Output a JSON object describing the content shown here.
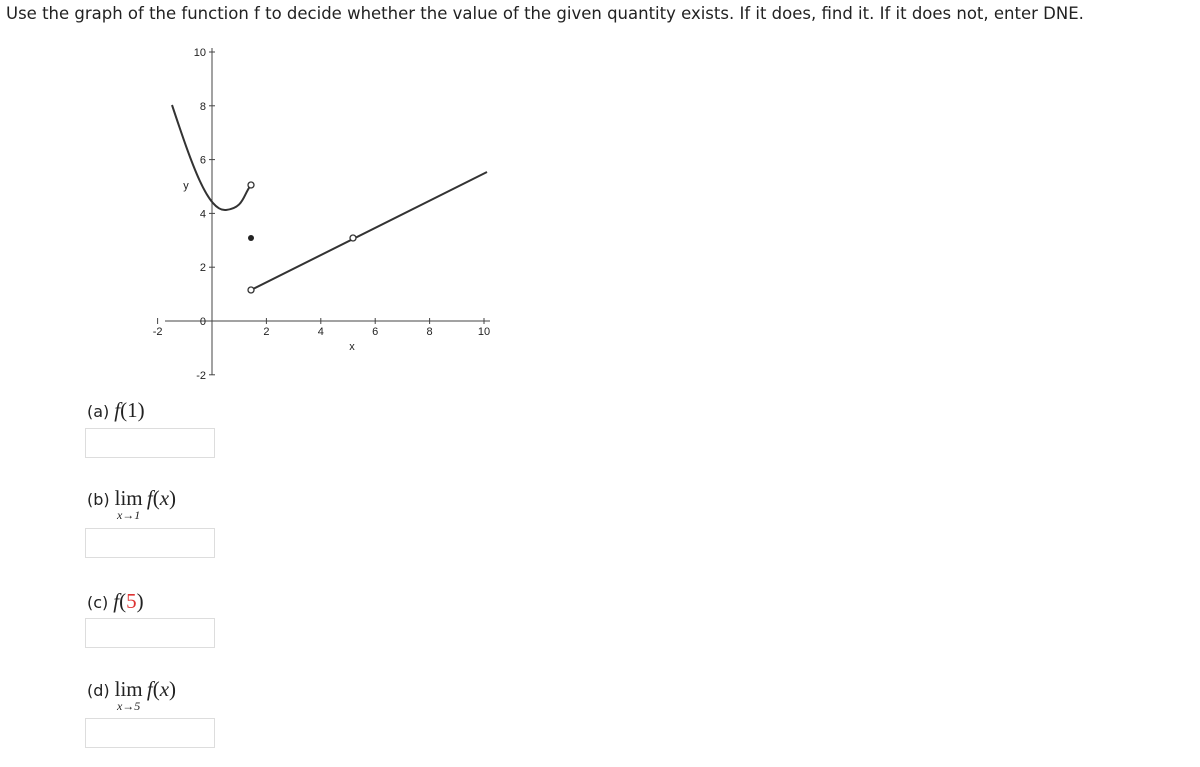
{
  "instruction": "Use the graph of the function f to decide whether the value of the given quantity exists. If it does, find it. If it does not, enter DNE.",
  "graph": {
    "x_label": "x",
    "y_label": "y",
    "xticks": [
      -2,
      2,
      4,
      6,
      8,
      10
    ],
    "yticks": [
      -2,
      0,
      2,
      4,
      6,
      8,
      10
    ]
  },
  "questions": [
    {
      "label": "(a)",
      "func": "f",
      "arg": "1"
    },
    {
      "label": "(b)",
      "limit": "lim",
      "sub": "x→1",
      "func": "f",
      "arg": "x"
    },
    {
      "label": "(c)",
      "func": "f",
      "arg": "5"
    },
    {
      "label": "(d)",
      "limit": "lim",
      "sub": "x→5",
      "func": "f",
      "arg": "x"
    }
  ]
}
